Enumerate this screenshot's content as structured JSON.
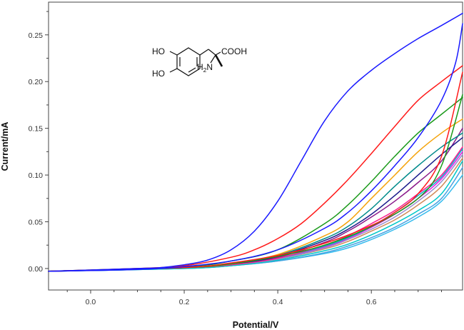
{
  "chart_data": {
    "type": "line",
    "xlabel": "Potential/V",
    "ylabel": "Current/mA",
    "xlim": [
      -0.09,
      0.795
    ],
    "ylim": [
      -0.023,
      0.285
    ],
    "xticks": [
      "0.0",
      "0.2",
      "0.4",
      "0.6"
    ],
    "xtick_values": [
      0.0,
      0.2,
      0.4,
      0.6
    ],
    "yticks": [
      "0.00",
      "0.05",
      "0.10",
      "0.15",
      "0.20",
      "0.25"
    ],
    "ytick_values": [
      0.0,
      0.05,
      0.1,
      0.15,
      0.2,
      0.25
    ],
    "grid": false,
    "legend": "none",
    "series": [
      {
        "color": "#1a1aff",
        "points": [
          [
            -0.09,
            -0.003
          ],
          [
            0.1,
            0.0
          ],
          [
            0.15,
            0.001
          ],
          [
            0.2,
            0.004
          ],
          [
            0.25,
            0.009
          ],
          [
            0.3,
            0.02
          ],
          [
            0.35,
            0.04
          ],
          [
            0.4,
            0.072
          ],
          [
            0.45,
            0.115
          ],
          [
            0.5,
            0.158
          ],
          [
            0.55,
            0.19
          ],
          [
            0.6,
            0.212
          ],
          [
            0.65,
            0.23
          ],
          [
            0.7,
            0.246
          ],
          [
            0.75,
            0.26
          ],
          [
            0.795,
            0.273
          ]
        ]
      },
      {
        "color": "#1a1aff",
        "points": [
          [
            -0.09,
            -0.003
          ],
          [
            0.1,
            -0.001
          ],
          [
            0.2,
            0.002
          ],
          [
            0.3,
            0.008
          ],
          [
            0.4,
            0.02
          ],
          [
            0.5,
            0.043
          ],
          [
            0.55,
            0.06
          ],
          [
            0.6,
            0.083
          ],
          [
            0.65,
            0.11
          ],
          [
            0.7,
            0.14
          ],
          [
            0.75,
            0.18
          ],
          [
            0.78,
            0.22
          ],
          [
            0.795,
            0.262
          ]
        ]
      },
      {
        "color": "#ff1a1a",
        "points": [
          [
            -0.09,
            -0.003
          ],
          [
            0.1,
            0.0
          ],
          [
            0.2,
            0.003
          ],
          [
            0.3,
            0.012
          ],
          [
            0.35,
            0.02
          ],
          [
            0.4,
            0.032
          ],
          [
            0.45,
            0.048
          ],
          [
            0.5,
            0.07
          ],
          [
            0.55,
            0.095
          ],
          [
            0.6,
            0.123
          ],
          [
            0.65,
            0.152
          ],
          [
            0.7,
            0.18
          ],
          [
            0.75,
            0.2
          ],
          [
            0.795,
            0.217
          ]
        ]
      },
      {
        "color": "#ff1a1a",
        "points": [
          [
            -0.09,
            -0.003
          ],
          [
            0.2,
            0.001
          ],
          [
            0.3,
            0.006
          ],
          [
            0.4,
            0.014
          ],
          [
            0.5,
            0.027
          ],
          [
            0.6,
            0.046
          ],
          [
            0.65,
            0.06
          ],
          [
            0.7,
            0.08
          ],
          [
            0.75,
            0.12
          ],
          [
            0.795,
            0.21
          ]
        ]
      },
      {
        "color": "#1a9a1a",
        "points": [
          [
            -0.09,
            -0.003
          ],
          [
            0.2,
            0.002
          ],
          [
            0.3,
            0.008
          ],
          [
            0.4,
            0.02
          ],
          [
            0.5,
            0.048
          ],
          [
            0.55,
            0.068
          ],
          [
            0.6,
            0.093
          ],
          [
            0.65,
            0.12
          ],
          [
            0.7,
            0.145
          ],
          [
            0.75,
            0.165
          ],
          [
            0.795,
            0.183
          ]
        ]
      },
      {
        "color": "#1a9a1a",
        "points": [
          [
            -0.09,
            -0.003
          ],
          [
            0.2,
            0.001
          ],
          [
            0.3,
            0.005
          ],
          [
            0.4,
            0.013
          ],
          [
            0.5,
            0.025
          ],
          [
            0.6,
            0.045
          ],
          [
            0.7,
            0.075
          ],
          [
            0.75,
            0.11
          ],
          [
            0.795,
            0.186
          ]
        ]
      },
      {
        "color": "#f4a30a",
        "points": [
          [
            -0.09,
            -0.003
          ],
          [
            0.2,
            0.001
          ],
          [
            0.3,
            0.005
          ],
          [
            0.4,
            0.015
          ],
          [
            0.5,
            0.035
          ],
          [
            0.55,
            0.05
          ],
          [
            0.6,
            0.075
          ],
          [
            0.65,
            0.1
          ],
          [
            0.7,
            0.125
          ],
          [
            0.75,
            0.145
          ],
          [
            0.795,
            0.16
          ]
        ]
      },
      {
        "color": "#008b8b",
        "points": [
          [
            -0.09,
            -0.003
          ],
          [
            0.2,
            0.001
          ],
          [
            0.3,
            0.005
          ],
          [
            0.4,
            0.014
          ],
          [
            0.5,
            0.032
          ],
          [
            0.55,
            0.045
          ],
          [
            0.6,
            0.064
          ],
          [
            0.65,
            0.088
          ],
          [
            0.7,
            0.11
          ],
          [
            0.75,
            0.13
          ],
          [
            0.795,
            0.145
          ]
        ]
      },
      {
        "color": "#1a1a8b",
        "points": [
          [
            -0.09,
            -0.003
          ],
          [
            0.2,
            0.001
          ],
          [
            0.3,
            0.005
          ],
          [
            0.4,
            0.013
          ],
          [
            0.5,
            0.03
          ],
          [
            0.55,
            0.042
          ],
          [
            0.6,
            0.058
          ],
          [
            0.65,
            0.078
          ],
          [
            0.7,
            0.1
          ],
          [
            0.75,
            0.122
          ],
          [
            0.795,
            0.14
          ]
        ]
      },
      {
        "color": "#8b1a8b",
        "points": [
          [
            -0.09,
            -0.003
          ],
          [
            0.2,
            0.001
          ],
          [
            0.3,
            0.005
          ],
          [
            0.4,
            0.012
          ],
          [
            0.5,
            0.028
          ],
          [
            0.55,
            0.04
          ],
          [
            0.6,
            0.055
          ],
          [
            0.65,
            0.072
          ],
          [
            0.7,
            0.092
          ],
          [
            0.75,
            0.115
          ],
          [
            0.795,
            0.15
          ]
        ]
      },
      {
        "color": "#ff1a8c",
        "points": [
          [
            -0.09,
            -0.003
          ],
          [
            0.2,
            0.001
          ],
          [
            0.3,
            0.004
          ],
          [
            0.4,
            0.011
          ],
          [
            0.5,
            0.025
          ],
          [
            0.55,
            0.035
          ],
          [
            0.6,
            0.048
          ],
          [
            0.65,
            0.062
          ],
          [
            0.7,
            0.08
          ],
          [
            0.75,
            0.1
          ],
          [
            0.795,
            0.13
          ]
        ]
      },
      {
        "color": "#00b4c8",
        "points": [
          [
            -0.09,
            -0.003
          ],
          [
            0.2,
            0.001
          ],
          [
            0.3,
            0.004
          ],
          [
            0.4,
            0.011
          ],
          [
            0.5,
            0.024
          ],
          [
            0.55,
            0.033
          ],
          [
            0.6,
            0.045
          ],
          [
            0.65,
            0.06
          ],
          [
            0.7,
            0.078
          ],
          [
            0.75,
            0.098
          ],
          [
            0.795,
            0.128
          ]
        ]
      },
      {
        "color": "#9b8bd0",
        "points": [
          [
            -0.09,
            -0.003
          ],
          [
            0.2,
            0.001
          ],
          [
            0.3,
            0.004
          ],
          [
            0.4,
            0.01
          ],
          [
            0.5,
            0.022
          ],
          [
            0.55,
            0.031
          ],
          [
            0.6,
            0.042
          ],
          [
            0.65,
            0.055
          ],
          [
            0.7,
            0.072
          ],
          [
            0.75,
            0.093
          ],
          [
            0.795,
            0.122
          ]
        ]
      },
      {
        "color": "#d08b5b",
        "points": [
          [
            -0.09,
            -0.003
          ],
          [
            0.2,
            0.001
          ],
          [
            0.3,
            0.004
          ],
          [
            0.4,
            0.01
          ],
          [
            0.5,
            0.021
          ],
          [
            0.55,
            0.029
          ],
          [
            0.6,
            0.04
          ],
          [
            0.65,
            0.052
          ],
          [
            0.7,
            0.068
          ],
          [
            0.75,
            0.088
          ],
          [
            0.795,
            0.118
          ]
        ]
      },
      {
        "color": "#00c8c8",
        "points": [
          [
            -0.09,
            -0.003
          ],
          [
            0.2,
            0.0
          ],
          [
            0.3,
            0.003
          ],
          [
            0.4,
            0.009
          ],
          [
            0.5,
            0.019
          ],
          [
            0.55,
            0.026
          ],
          [
            0.6,
            0.036
          ],
          [
            0.65,
            0.048
          ],
          [
            0.7,
            0.062
          ],
          [
            0.75,
            0.08
          ],
          [
            0.795,
            0.115
          ]
        ]
      },
      {
        "color": "#4aa0e0",
        "points": [
          [
            -0.09,
            -0.003
          ],
          [
            0.2,
            0.0
          ],
          [
            0.3,
            0.003
          ],
          [
            0.4,
            0.008
          ],
          [
            0.5,
            0.017
          ],
          [
            0.55,
            0.024
          ],
          [
            0.6,
            0.033
          ],
          [
            0.65,
            0.044
          ],
          [
            0.7,
            0.058
          ],
          [
            0.75,
            0.075
          ],
          [
            0.795,
            0.108
          ]
        ]
      },
      {
        "color": "#e61ae6",
        "points": [
          [
            -0.09,
            -0.003
          ],
          [
            0.2,
            0.001
          ],
          [
            0.3,
            0.004
          ],
          [
            0.4,
            0.01
          ],
          [
            0.5,
            0.023
          ],
          [
            0.55,
            0.032
          ],
          [
            0.6,
            0.044
          ],
          [
            0.65,
            0.058
          ],
          [
            0.7,
            0.075
          ],
          [
            0.75,
            0.096
          ],
          [
            0.795,
            0.125
          ]
        ]
      },
      {
        "color": "#33bbee",
        "points": [
          [
            -0.09,
            -0.003
          ],
          [
            0.2,
            0.0
          ],
          [
            0.3,
            0.003
          ],
          [
            0.4,
            0.008
          ],
          [
            0.5,
            0.016
          ],
          [
            0.55,
            0.022
          ],
          [
            0.6,
            0.031
          ],
          [
            0.65,
            0.042
          ],
          [
            0.7,
            0.055
          ],
          [
            0.75,
            0.072
          ],
          [
            0.795,
            0.1
          ]
        ]
      }
    ]
  },
  "molecule": {
    "labels": {
      "ho_top": "HO",
      "ho_bottom": "HO",
      "cooh": "COOH",
      "h2n_h": "H",
      "h2n_2": "2",
      "h2n_n": "N"
    }
  }
}
